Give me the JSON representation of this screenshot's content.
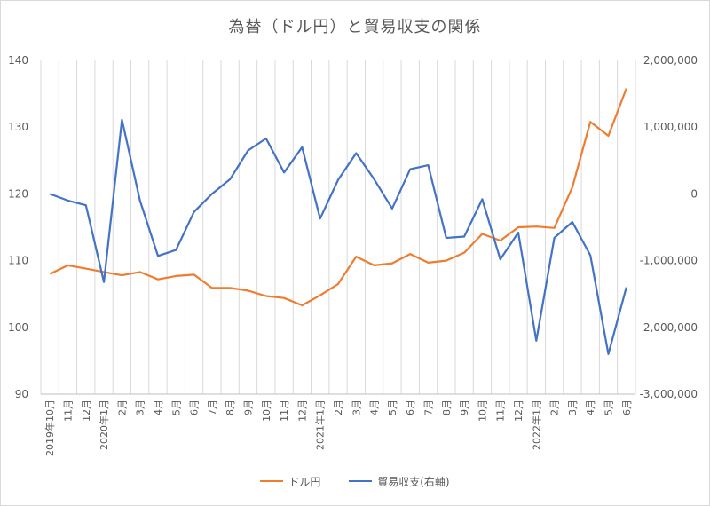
{
  "chart_data": {
    "type": "line",
    "title": "為替（ドル円）と貿易収支の関係",
    "categories": [
      "2019年10月",
      "11月",
      "12月",
      "2020年1月",
      "2月",
      "3月",
      "4月",
      "5月",
      "6月",
      "7月",
      "8月",
      "9月",
      "10月",
      "11月",
      "12月",
      "2021年1月",
      "2月",
      "3月",
      "4月",
      "5月",
      "6月",
      "7月",
      "8月",
      "9月",
      "10月",
      "11月",
      "12月",
      "2022年1月",
      "2月",
      "3月",
      "4月",
      "5月",
      "6月"
    ],
    "y_left": {
      "range": [
        90,
        140
      ],
      "ticks": [
        "90",
        "100",
        "110",
        "120",
        "130",
        "140"
      ]
    },
    "y_right": {
      "range": [
        -3000000,
        2000000
      ],
      "ticks": [
        "-3,000,000",
        "-2,000,000",
        "-1,000,000",
        "0",
        "1,000,000",
        "2,000,000"
      ]
    },
    "grid": "vertical",
    "legend_position": "bottom",
    "series": [
      {
        "name": "ドル円",
        "axis": "left",
        "color": "#ed7d31",
        "values": [
          108.0,
          109.3,
          108.8,
          108.3,
          107.8,
          108.3,
          107.2,
          107.7,
          107.9,
          105.9,
          105.9,
          105.5,
          104.7,
          104.4,
          103.3,
          104.8,
          106.5,
          110.6,
          109.3,
          109.6,
          111.0,
          109.7,
          110.0,
          111.2,
          114.0,
          113.0,
          115.0,
          115.1,
          114.9,
          121.0,
          130.8,
          128.7,
          135.8
        ]
      },
      {
        "name": "貿易収支(右軸)",
        "axis": "right",
        "color": "#4472c4",
        "values": [
          0,
          -100000,
          -170000,
          -1320000,
          1110000,
          -100000,
          -930000,
          -840000,
          -270000,
          0,
          220000,
          650000,
          830000,
          320000,
          700000,
          -370000,
          210000,
          610000,
          220000,
          -220000,
          370000,
          430000,
          -660000,
          -640000,
          -80000,
          -980000,
          -580000,
          -2200000,
          -660000,
          -420000,
          -920000,
          -2400000,
          -1400000
        ]
      }
    ]
  }
}
